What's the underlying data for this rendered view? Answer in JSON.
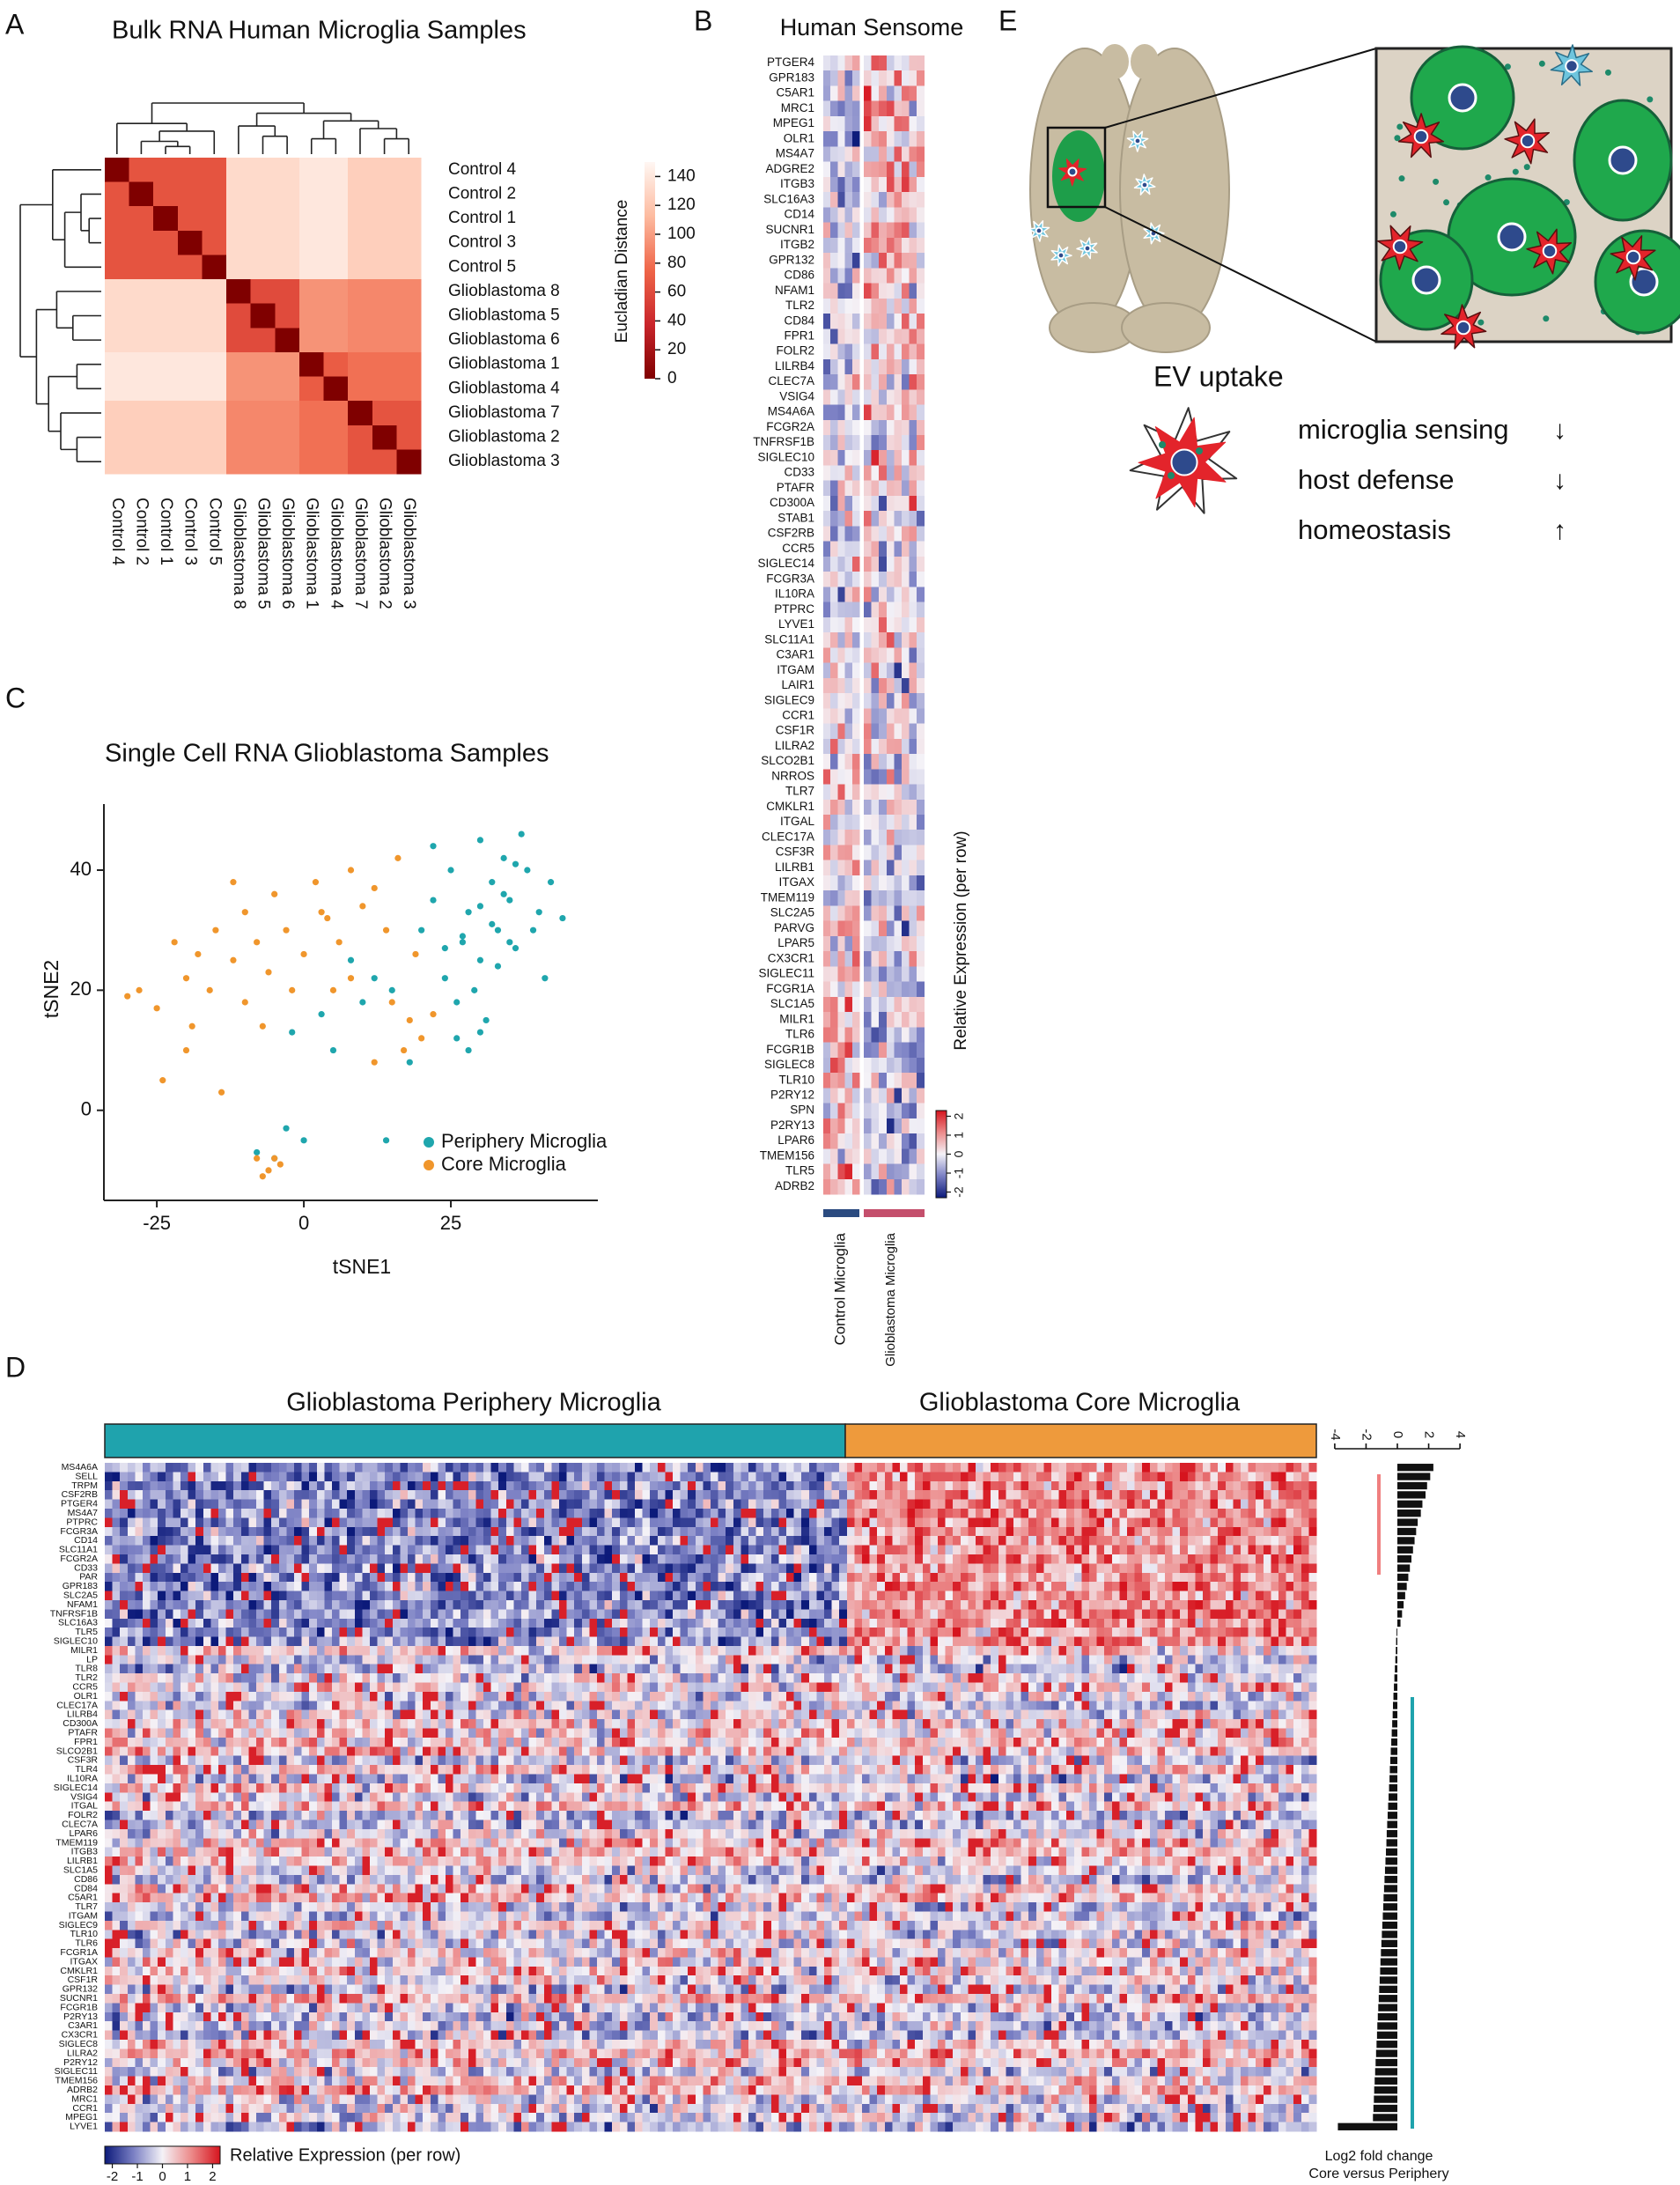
{
  "panel_labels": [
    "A",
    "B",
    "C",
    "D",
    "E"
  ],
  "chart_data": [
    {
      "type": "heatmap",
      "title": "Bulk RNA Human Microglia Samples",
      "rows": [
        "Control 4",
        "Control 2",
        "Control 1",
        "Control 3",
        "Control 5",
        "Glioblastoma 8",
        "Glioblastoma 5",
        "Glioblastoma 6",
        "Glioblastoma 1",
        "Glioblastoma 4",
        "Glioblastoma 7",
        "Glioblastoma 2",
        "Glioblastoma 3"
      ],
      "columns": [
        "Control 4",
        "Control 2",
        "Control 1",
        "Control 3",
        "Control 5",
        "Glioblastoma 8",
        "Glioblastoma 5",
        "Glioblastoma 6",
        "Glioblastoma 1",
        "Glioblastoma 4",
        "Glioblastoma 7",
        "Glioblastoma 2",
        "Glioblastoma 3"
      ],
      "values": [
        [
          0,
          65,
          65,
          65,
          65,
          132,
          132,
          132,
          140,
          140,
          125,
          125,
          125
        ],
        [
          65,
          0,
          65,
          65,
          65,
          132,
          132,
          132,
          140,
          140,
          125,
          125,
          125
        ],
        [
          65,
          65,
          0,
          65,
          65,
          132,
          132,
          132,
          140,
          140,
          125,
          125,
          125
        ],
        [
          65,
          65,
          65,
          0,
          65,
          132,
          132,
          132,
          140,
          140,
          125,
          125,
          125
        ],
        [
          65,
          65,
          65,
          65,
          0,
          132,
          132,
          132,
          140,
          140,
          125,
          125,
          125
        ],
        [
          132,
          132,
          132,
          132,
          132,
          0,
          60,
          60,
          95,
          95,
          90,
          90,
          90
        ],
        [
          132,
          132,
          132,
          132,
          132,
          60,
          0,
          60,
          95,
          95,
          90,
          90,
          90
        ],
        [
          132,
          132,
          132,
          132,
          132,
          60,
          60,
          0,
          95,
          95,
          90,
          90,
          90
        ],
        [
          140,
          140,
          140,
          140,
          140,
          95,
          95,
          95,
          0,
          70,
          80,
          80,
          80
        ],
        [
          140,
          140,
          140,
          140,
          140,
          95,
          95,
          95,
          70,
          0,
          80,
          80,
          80
        ],
        [
          125,
          125,
          125,
          125,
          125,
          90,
          90,
          90,
          80,
          80,
          0,
          65,
          65
        ],
        [
          125,
          125,
          125,
          125,
          125,
          90,
          90,
          90,
          80,
          80,
          65,
          0,
          65
        ],
        [
          125,
          125,
          125,
          125,
          125,
          90,
          90,
          90,
          80,
          80,
          65,
          65,
          0
        ]
      ],
      "colorbar": {
        "label": "Eucladian Distance",
        "lim": [
          0,
          150
        ],
        "ticks": [
          0,
          20,
          40,
          60,
          80,
          100,
          120,
          140
        ]
      }
    },
    {
      "type": "heatmap",
      "title": "Human Sensome",
      "rows": [
        "PTGER4",
        "GPR183",
        "C5AR1",
        "MRC1",
        "MPEG1",
        "OLR1",
        "MS4A7",
        "ADGRE2",
        "ITGB3",
        "SLC16A3",
        "CD14",
        "SUCNR1",
        "ITGB2",
        "GPR132",
        "CD86",
        "NFAM1",
        "TLR2",
        "CD84",
        "FPR1",
        "FOLR2",
        "LILRB4",
        "CLEC7A",
        "VSIG4",
        "MS4A6A",
        "FCGR2A",
        "TNFRSF1B",
        "SIGLEC10",
        "CD33",
        "PTAFR",
        "CD300A",
        "STAB1",
        "CSF2RB",
        "CCR5",
        "SIGLEC14",
        "FCGR3A",
        "IL10RA",
        "PTPRC",
        "LYVE1",
        "SLC11A1",
        "C3AR1",
        "ITGAM",
        "LAIR1",
        "SIGLEC9",
        "CCR1",
        "CSF1R",
        "LILRA2",
        "SLCO2B1",
        "NRROS",
        "TLR7",
        "CMKLR1",
        "ITGAL",
        "CLEC17A",
        "CSF3R",
        "LILRB1",
        "ITGAX",
        "TMEM119",
        "SLC2A5",
        "PARVG",
        "LPAR5",
        "CX3CR1",
        "SIGLEC11",
        "FCGR1A",
        "SLC1A5",
        "MILR1",
        "TLR6",
        "FCGR1B",
        "SIGLEC8",
        "TLR10",
        "P2RY12",
        "SPN",
        "P2RY13",
        "LPAR6",
        "TMEM156",
        "TLR5",
        "ADRB2"
      ],
      "groups": [
        "Control Microglia",
        "Glioblastoma Microglia"
      ],
      "group_colors": [
        "#2b4b80",
        "#c44f6c"
      ],
      "colorbar": {
        "label": "Relative Expression (per row)",
        "lim": [
          -2.3,
          2.3
        ],
        "ticks": [
          -2,
          -1,
          0,
          1,
          2
        ]
      }
    },
    {
      "type": "scatter",
      "title": "Single Cell RNA Glioblastoma Samples",
      "xlabel": "tSNE1",
      "ylabel": "tSNE2",
      "xlim": [
        -34,
        50
      ],
      "xticks": [
        -25,
        0,
        25
      ],
      "ylim": [
        -15,
        51
      ],
      "yticks": [
        0,
        20,
        40
      ],
      "legend": "bottom-right",
      "series": [
        {
          "name": "Periphery Microglia",
          "color": "#1fa6ad",
          "x": [
            20,
            22,
            25,
            27,
            28,
            30,
            30,
            32,
            33,
            34,
            35,
            36,
            38,
            40,
            42,
            44,
            24,
            26,
            29,
            31,
            33,
            35,
            37,
            39,
            41,
            28,
            30,
            32,
            34,
            36,
            22,
            24,
            26,
            18,
            15,
            10,
            5,
            0,
            -5,
            -3,
            12,
            8,
            -8,
            -2,
            3,
            30,
            27,
            14
          ],
          "values": [
            30,
            35,
            40,
            28,
            33,
            45,
            25,
            38,
            30,
            42,
            35,
            27,
            40,
            33,
            38,
            32,
            22,
            18,
            20,
            15,
            24,
            28,
            46,
            30,
            22,
            10,
            13,
            31,
            36,
            41,
            44,
            27,
            12,
            8,
            20,
            18,
            10,
            -5,
            -8,
            -3,
            22,
            25,
            -7,
            13,
            16,
            34,
            29,
            -5
          ]
        },
        {
          "name": "Core Microglia",
          "color": "#f0962c",
          "x": [
            -30,
            -28,
            -25,
            -20,
            -18,
            -15,
            -12,
            -10,
            -8,
            -6,
            -5,
            -3,
            -2,
            0,
            2,
            4,
            6,
            8,
            10,
            12,
            14,
            16,
            -16,
            -10,
            -7,
            15,
            18,
            20,
            22,
            17,
            12,
            -8,
            -6,
            -4,
            -7,
            -5,
            -20,
            -24,
            -14,
            5,
            3,
            -12,
            8,
            -19,
            19,
            -22
          ],
          "values": [
            19,
            20,
            17,
            22,
            26,
            30,
            25,
            33,
            28,
            23,
            36,
            30,
            20,
            26,
            38,
            32,
            28,
            40,
            34,
            37,
            30,
            42,
            20,
            18,
            14,
            18,
            15,
            12,
            16,
            10,
            8,
            -8,
            -10,
            -9,
            -11,
            -8,
            10,
            5,
            3,
            20,
            33,
            38,
            22,
            14,
            26,
            28
          ]
        }
      ]
    },
    {
      "type": "heatmap",
      "groups": [
        "Glioblastoma Periphery Microglia",
        "Glioblastoma Core Microglia"
      ],
      "group_colors": [
        "#1fa3ad",
        "#ee9a3c"
      ],
      "rows": [
        "MS4A6A",
        "SELL",
        "TRPM",
        "CSF2RB",
        "PTGER4",
        "MS4A7",
        "PTPRC",
        "FCGR3A",
        "CD14",
        "SLC11A1",
        "FCGR2A",
        "CD33",
        "PAR",
        "GPR183",
        "SLC2A5",
        "NFAM1",
        "TNFRSF1B",
        "SLC16A3",
        "TLR5",
        "SIGLEC10",
        "MILR1",
        "LP",
        "TLR8",
        "TLR2",
        "CCR5",
        "OLR1",
        "CLEC17A",
        "LILRB4",
        "CD300A",
        "PTAFR",
        "FPR1",
        "SLCO2B1",
        "CSF3R",
        "TLR4",
        "IL10RA",
        "SIGLEC14",
        "VSIG4",
        "ITGAL",
        "FOLR2",
        "CLEC7A",
        "LPAR6",
        "TMEM119",
        "ITGB3",
        "LILRB1",
        "SLC1A5",
        "CD86",
        "CD84",
        "C5AR1",
        "TLR7",
        "ITGAM",
        "SIGLEC9",
        "TLR10",
        "TLR6",
        "FCGR1A",
        "ITGAX",
        "CMKLR1",
        "CSF1R",
        "GPR132",
        "SUCNR1",
        "FCGR1B",
        "P2RY13",
        "C3AR1",
        "CX3CR1",
        "SIGLEC8",
        "LILRA2",
        "P2RY12",
        "SIGLEC11",
        "TMEM156",
        "ADRB2",
        "MRC1",
        "CCR1",
        "MPEG1",
        "LYVE1"
      ],
      "colorbar": {
        "label": "Relative Expression (per row)",
        "lim": [
          -2.3,
          2.3
        ],
        "ticks": [
          -2,
          -1,
          0,
          1,
          2
        ]
      }
    },
    {
      "type": "bar",
      "orientation": "horizontal",
      "color": "#111111",
      "xlabel": "Log2 fold change",
      "subtitle": "Core versus Periphery",
      "xlim": [
        -4.5,
        4.5
      ],
      "xticks": [
        -4,
        -2,
        0,
        2,
        4
      ],
      "values": [
        2.3,
        2.1,
        1.9,
        1.8,
        1.6,
        1.5,
        1.3,
        1.2,
        1.1,
        1.0,
        0.9,
        0.8,
        0.7,
        0.6,
        0.5,
        0.4,
        0.3,
        0.2,
        -0.05,
        -0.08,
        -0.1,
        -0.13,
        -0.16,
        -0.19,
        -0.22,
        -0.25,
        -0.28,
        -0.3,
        -0.33,
        -0.36,
        -0.39,
        -0.42,
        -0.45,
        -0.48,
        -0.5,
        -0.53,
        -0.56,
        -0.59,
        -0.62,
        -0.65,
        -0.68,
        -0.7,
        -0.73,
        -0.76,
        -0.79,
        -0.82,
        -0.85,
        -0.88,
        -0.9,
        -0.93,
        -0.96,
        -0.99,
        -1.02,
        -1.05,
        -1.08,
        -1.1,
        -1.13,
        -1.16,
        -1.19,
        -1.22,
        -1.25,
        -1.28,
        -1.3,
        -1.33,
        -1.36,
        -1.39,
        -1.42,
        -1.45,
        -1.48,
        -1.5,
        -1.53,
        -1.56,
        -3.8
      ]
    }
  ],
  "diagram": {
    "caption": "EV uptake",
    "effects": [
      {
        "label": "microglia sensing",
        "direction": "↓"
      },
      {
        "label": "host defense",
        "direction": "↓"
      },
      {
        "label": "homeostasis",
        "direction": "↑"
      }
    ]
  }
}
